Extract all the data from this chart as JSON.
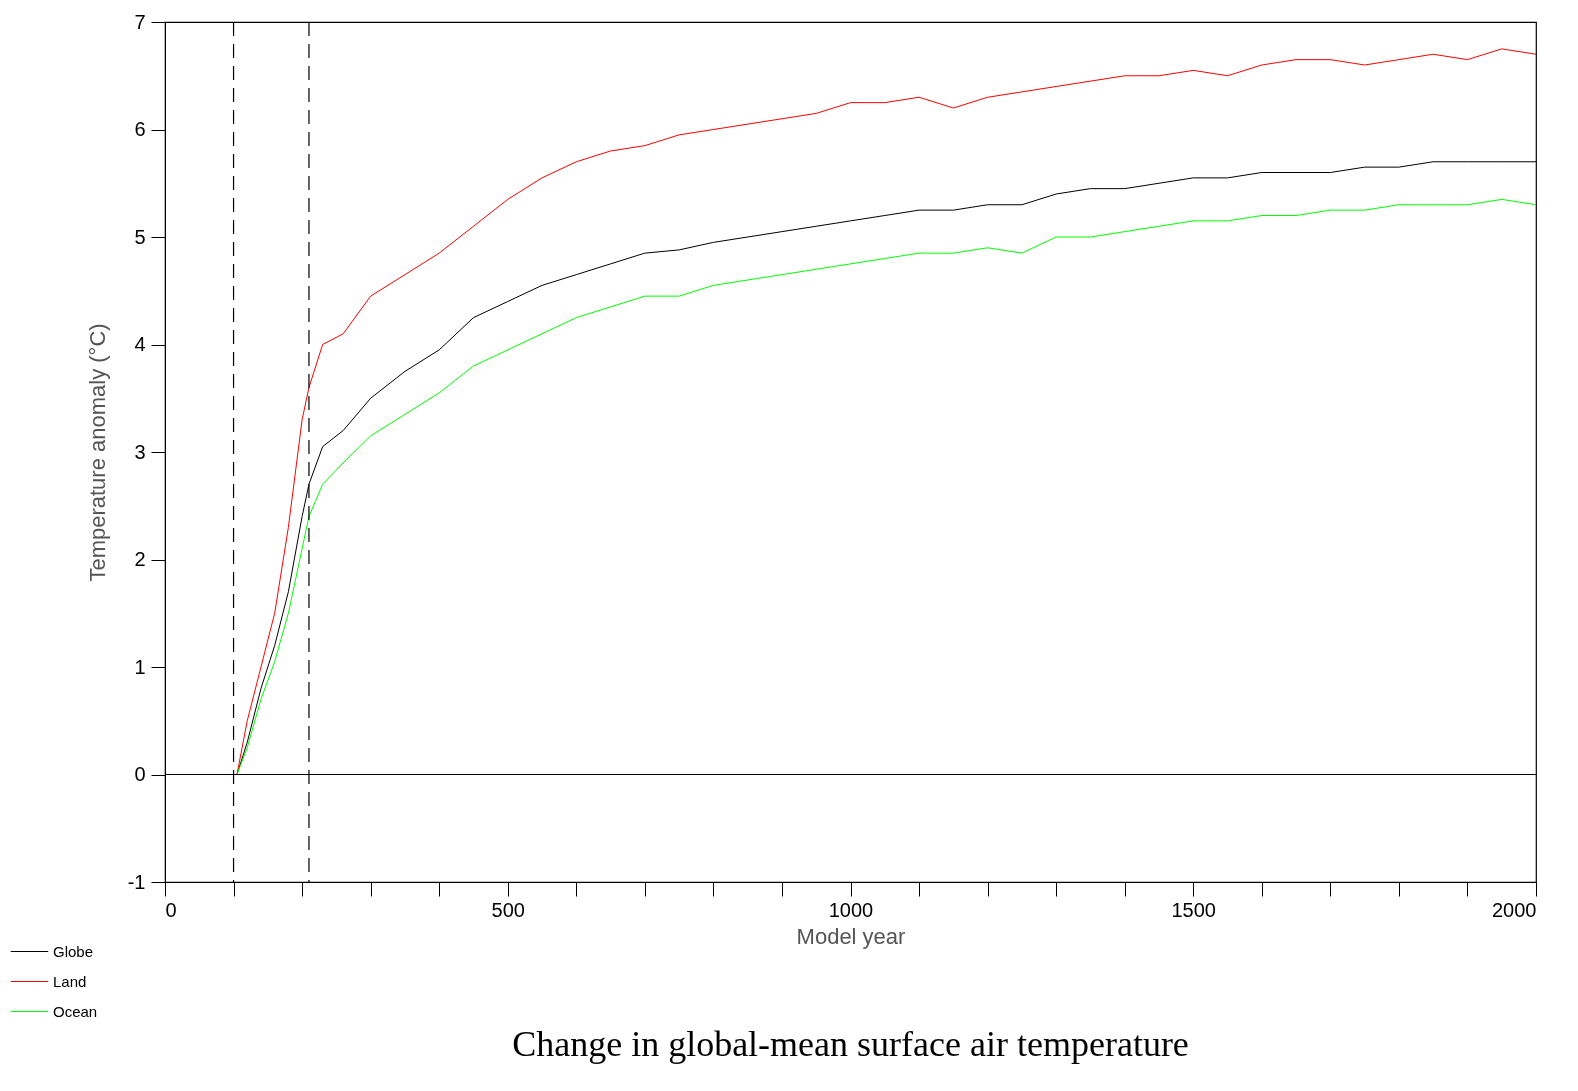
{
  "chart_data": {
    "type": "line",
    "title": "Change in global-mean surface air temperature",
    "xlabel": "Model year",
    "ylabel": "Temperature anomaly (°C)",
    "x": [
      105,
      120,
      140,
      160,
      180,
      200,
      210,
      230,
      260,
      300,
      350,
      400,
      450,
      500,
      550,
      600,
      650,
      700,
      750,
      800,
      850,
      900,
      950,
      1000,
      1050,
      1100,
      1150,
      1200,
      1250,
      1300,
      1350,
      1400,
      1450,
      1500,
      1550,
      1600,
      1650,
      1700,
      1750,
      1800,
      1850,
      1900,
      1950,
      2000
    ],
    "series": [
      {
        "name": "Globe",
        "color": "#000000",
        "values": [
          0,
          0.3,
          0.8,
          1.2,
          1.7,
          2.4,
          2.7,
          3.05,
          3.2,
          3.5,
          3.75,
          3.95,
          4.25,
          4.4,
          4.55,
          4.65,
          4.75,
          4.85,
          4.88,
          4.95,
          5.0,
          5.05,
          5.1,
          5.15,
          5.2,
          5.25,
          5.25,
          5.3,
          5.3,
          5.4,
          5.45,
          5.45,
          5.5,
          5.55,
          5.55,
          5.6,
          5.6,
          5.6,
          5.65,
          5.65,
          5.7,
          5.7,
          5.7,
          5.7
        ]
      },
      {
        "name": "Land",
        "color": "#ff0000",
        "values": [
          0,
          0.5,
          1.0,
          1.5,
          2.3,
          3.3,
          3.6,
          4.0,
          4.1,
          4.45,
          4.65,
          4.85,
          5.1,
          5.35,
          5.55,
          5.7,
          5.8,
          5.85,
          5.95,
          6.0,
          6.05,
          6.1,
          6.15,
          6.25,
          6.25,
          6.3,
          6.2,
          6.3,
          6.35,
          6.4,
          6.45,
          6.5,
          6.5,
          6.55,
          6.5,
          6.6,
          6.65,
          6.65,
          6.6,
          6.65,
          6.7,
          6.65,
          6.75,
          6.7
        ]
      },
      {
        "name": "Ocean",
        "color": "#00ff00",
        "values": [
          0,
          0.25,
          0.7,
          1.05,
          1.5,
          2.1,
          2.4,
          2.7,
          2.9,
          3.15,
          3.35,
          3.55,
          3.8,
          3.95,
          4.1,
          4.25,
          4.35,
          4.45,
          4.45,
          4.55,
          4.6,
          4.65,
          4.7,
          4.75,
          4.8,
          4.85,
          4.85,
          4.9,
          4.85,
          5.0,
          5.0,
          5.05,
          5.1,
          5.15,
          5.15,
          5.2,
          5.2,
          5.25,
          5.25,
          5.3,
          5.3,
          5.3,
          5.35,
          5.3
        ]
      }
    ],
    "xlim": [
      0,
      2000
    ],
    "ylim": [
      -1,
      7
    ],
    "xticks": [
      0,
      {
        "value": 100,
        "label": null
      },
      {
        "value": 200,
        "label": null
      },
      {
        "value": 300,
        "label": null
      },
      {
        "value": 400,
        "label": null
      },
      500,
      {
        "value": 600,
        "label": null
      },
      {
        "value": 700,
        "label": null
      },
      {
        "value": 800,
        "label": null
      },
      {
        "value": 900,
        "label": null
      },
      1000,
      {
        "value": 1100,
        "label": null
      },
      {
        "value": 1200,
        "label": null
      },
      {
        "value": 1300,
        "label": null
      },
      {
        "value": 1400,
        "label": null
      },
      1500,
      {
        "value": 1600,
        "label": null
      },
      {
        "value": 1700,
        "label": null
      },
      {
        "value": 1800,
        "label": null
      },
      {
        "value": 1900,
        "label": null
      },
      2000
    ],
    "yticks": [
      -1,
      0,
      1,
      2,
      3,
      4,
      5,
      6,
      7
    ],
    "ref_lines": [
      {
        "axis": "y",
        "value": 0,
        "color": "#000000",
        "line_style": "solid"
      },
      {
        "axis": "x",
        "value": 100,
        "color": "#000000",
        "line_style": "dashed"
      },
      {
        "axis": "x",
        "value": 210,
        "color": "#000000",
        "line_style": "dashed"
      }
    ],
    "grid": false,
    "legend": "bottom left"
  }
}
